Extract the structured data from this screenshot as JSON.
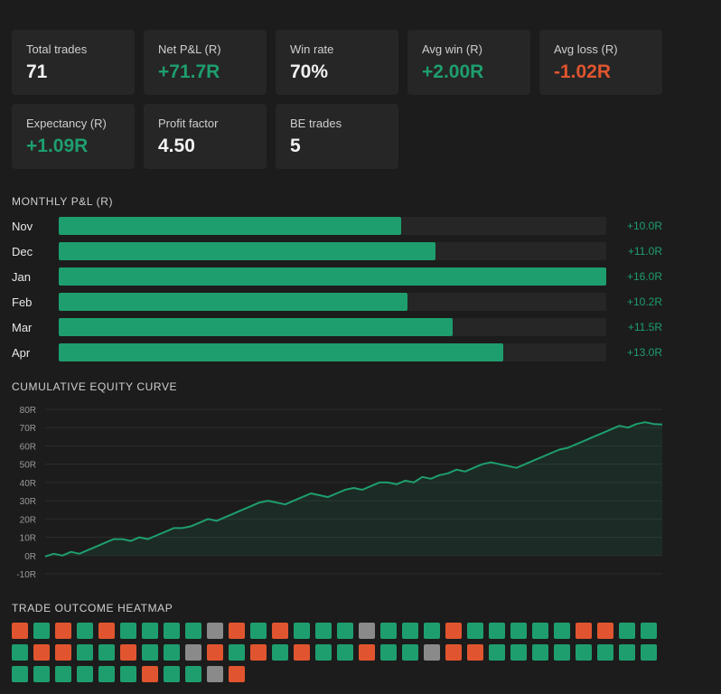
{
  "stats": [
    [
      {
        "label": "Total trades",
        "value": "71",
        "tone": ""
      },
      {
        "label": "Net P&L (R)",
        "value": "+71.7R",
        "tone": "pos"
      },
      {
        "label": "Win rate",
        "value": "70%",
        "tone": ""
      },
      {
        "label": "Avg win (R)",
        "value": "+2.00R",
        "tone": "pos"
      },
      {
        "label": "Avg loss (R)",
        "value": "-1.02R",
        "tone": "neg"
      }
    ],
    [
      {
        "label": "Expectancy (R)",
        "value": "+1.09R",
        "tone": "pos"
      },
      {
        "label": "Profit factor",
        "value": "4.50",
        "tone": ""
      },
      {
        "label": "BE trades",
        "value": "5",
        "tone": ""
      }
    ]
  ],
  "monthly_title": "MONTHLY P&L (R)",
  "equity_title": "CUMULATIVE EQUITY CURVE",
  "heatmap_title": "TRADE OUTCOME HEATMAP",
  "colors": {
    "win": "#1e9e6e",
    "loss": "#e0552f",
    "be": "#8a8a8a"
  },
  "chart_data": [
    {
      "type": "bar",
      "orientation": "horizontal",
      "title": "MONTHLY P&L (R)",
      "categories": [
        "Nov",
        "Dec",
        "Jan",
        "Feb",
        "Mar",
        "Apr"
      ],
      "values": [
        10.0,
        11.0,
        16.0,
        10.2,
        11.5,
        13.0
      ],
      "value_labels": [
        "+10.0R",
        "+11.0R",
        "+16.0R",
        "+10.2R",
        "+11.5R",
        "+13.0R"
      ]
    },
    {
      "type": "area",
      "title": "CUMULATIVE EQUITY CURVE",
      "ylim": [
        -10,
        80
      ],
      "yticks": [
        "80R",
        "70R",
        "60R",
        "50R",
        "40R",
        "30R",
        "20R",
        "10R",
        "0R",
        "-10R"
      ],
      "ytick_values": [
        80,
        70,
        60,
        50,
        40,
        30,
        20,
        10,
        0,
        -10
      ],
      "grid": true,
      "y": [
        -0.5,
        1,
        0,
        2,
        1,
        3,
        5,
        7,
        9,
        9,
        8,
        10,
        9,
        11,
        13,
        15,
        15,
        16,
        18,
        20,
        19,
        21,
        23,
        25,
        27,
        29,
        30,
        29,
        28,
        30,
        32,
        34,
        33,
        32,
        34,
        36,
        37,
        36,
        38,
        40,
        40,
        39,
        41,
        40,
        43,
        42,
        44,
        45,
        47,
        46,
        48,
        50,
        51,
        50,
        49,
        48,
        50,
        52,
        54,
        56,
        58,
        59,
        61,
        63,
        65,
        67,
        69,
        71,
        70,
        72,
        73,
        72,
        71.7
      ]
    },
    {
      "type": "heatmap",
      "title": "TRADE OUTCOME HEATMAP",
      "rows": [
        [
          "L",
          "W",
          "L",
          "W",
          "L",
          "W",
          "W",
          "W",
          "W",
          "B",
          "L",
          "W",
          "L",
          "W",
          "W",
          "W",
          "B",
          "W",
          "W",
          "W",
          "L",
          "W",
          "W",
          "W",
          "W",
          "W",
          "L",
          "L",
          "W",
          "W"
        ],
        [
          "W",
          "L",
          "L",
          "W",
          "W",
          "L",
          "W",
          "W",
          "B",
          "L",
          "W",
          "L",
          "W",
          "L",
          "W",
          "W",
          "L",
          "W",
          "W",
          "B",
          "L",
          "L",
          "W",
          "W",
          "W",
          "W",
          "W",
          "W",
          "W",
          "W"
        ],
        [
          "W",
          "W",
          "W",
          "W",
          "W",
          "W",
          "L",
          "W",
          "W",
          "B",
          "L"
        ]
      ]
    }
  ]
}
